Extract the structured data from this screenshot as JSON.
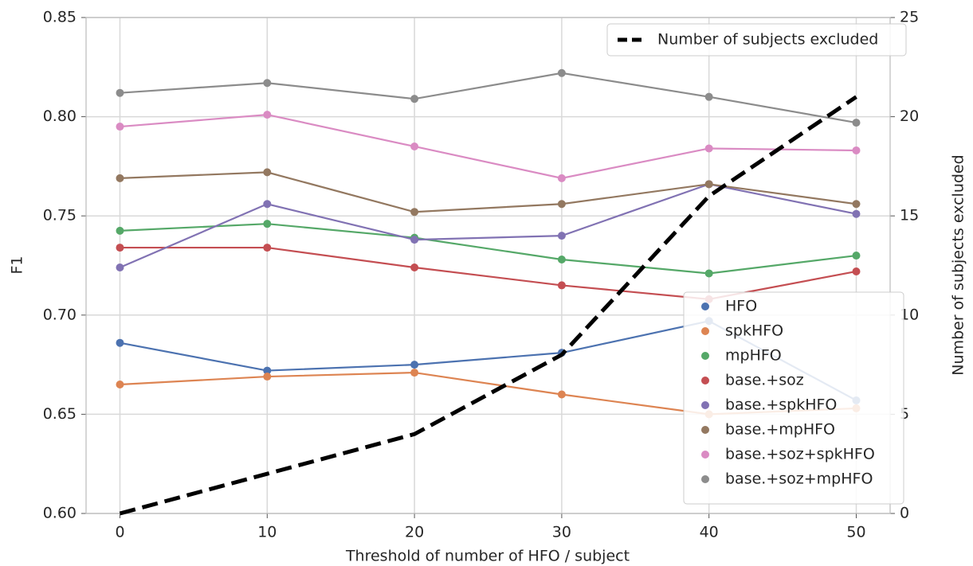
{
  "chart_data": {
    "type": "line",
    "xlabel": "Threshold of number of HFO / subject",
    "ylabel": "F1",
    "y2label": "Number of subjects excluded",
    "x": [
      0,
      10,
      20,
      30,
      40,
      50
    ],
    "xlim": [
      -2.3,
      52.3
    ],
    "xticks": [
      0,
      10,
      20,
      30,
      40,
      50
    ],
    "ylim": [
      0.6,
      0.85
    ],
    "yticks": [
      {
        "value": 0.6,
        "label": "0.60"
      },
      {
        "value": 0.65,
        "label": "0.65"
      },
      {
        "value": 0.7,
        "label": "0.70"
      },
      {
        "value": 0.75,
        "label": "0.75"
      },
      {
        "value": 0.8,
        "label": "0.80"
      },
      {
        "value": 0.85,
        "label": "0.85"
      }
    ],
    "y2lim": [
      0,
      25
    ],
    "y2ticks": [
      0,
      5,
      10,
      15,
      20,
      25
    ],
    "grid": true,
    "legend": "lower right",
    "y2legend": "upper right",
    "series": [
      {
        "name": "HFO",
        "color": "#4c72b0",
        "values": [
          0.686,
          0.672,
          0.675,
          0.681,
          0.697,
          0.657
        ]
      },
      {
        "name": "spkHFO",
        "color": "#dd8452",
        "values": [
          0.665,
          0.669,
          0.671,
          0.66,
          0.65,
          0.653
        ]
      },
      {
        "name": "mpHFO",
        "color": "#55a868",
        "values": [
          0.7425,
          0.746,
          0.739,
          0.728,
          0.721,
          0.73
        ]
      },
      {
        "name": "base.+soz",
        "color": "#c44e52",
        "values": [
          0.734,
          0.734,
          0.724,
          0.715,
          0.708,
          0.722
        ]
      },
      {
        "name": "base.+spkHFO",
        "color": "#8172b3",
        "values": [
          0.724,
          0.756,
          0.738,
          0.74,
          0.766,
          0.751
        ]
      },
      {
        "name": "base.+mpHFO",
        "color": "#937860",
        "values": [
          0.769,
          0.772,
          0.752,
          0.756,
          0.766,
          0.756
        ]
      },
      {
        "name": "base.+soz+spkHFO",
        "color": "#da8bc3",
        "values": [
          0.795,
          0.801,
          0.785,
          0.769,
          0.784,
          0.783
        ]
      },
      {
        "name": "base.+soz+mpHFO",
        "color": "#8c8c8c",
        "values": [
          0.812,
          0.817,
          0.809,
          0.822,
          0.81,
          0.797
        ]
      },
      {
        "name": "Number of subjects excluded",
        "color": "#000000",
        "axis": "y2",
        "linestyle": "dashed",
        "values": [
          0,
          2,
          4,
          8,
          16,
          21
        ]
      }
    ]
  }
}
